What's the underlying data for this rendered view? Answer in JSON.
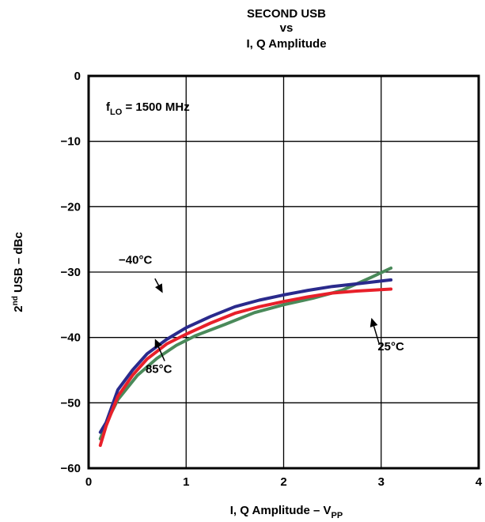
{
  "chart_data": {
    "type": "line",
    "title_lines": [
      "SECOND USB",
      "vs",
      "I, Q Amplitude"
    ],
    "xlabel": {
      "main": "I, Q Amplitude – V",
      "sub": "PP"
    },
    "ylabel": {
      "pre": "2",
      "sup": "nd",
      "post": " USB – dBc"
    },
    "xlim": [
      0,
      4
    ],
    "ylim": [
      -60,
      0
    ],
    "xticks": [
      0,
      1,
      2,
      3,
      4
    ],
    "yticks": [
      0,
      -10,
      -20,
      -30,
      -40,
      -50,
      -60
    ],
    "xtick_labels": [
      "0",
      "1",
      "2",
      "3",
      "4"
    ],
    "ytick_labels": [
      "0",
      "−10",
      "−20",
      "−30",
      "−40",
      "−50",
      "−60"
    ],
    "grid": true,
    "annotation": {
      "main": "f",
      "sub": "LO",
      "rest": " = 1500 MHz"
    },
    "series": [
      {
        "name": "−40°C",
        "color": "#2a2a8c",
        "x": [
          0.12,
          0.18,
          0.3,
          0.45,
          0.6,
          0.8,
          1.0,
          1.25,
          1.5,
          1.75,
          2.0,
          2.25,
          2.5,
          2.75,
          3.1
        ],
        "y": [
          -54.5,
          -53.0,
          -48.0,
          -45.0,
          -42.5,
          -40.3,
          -38.5,
          -36.8,
          -35.3,
          -34.3,
          -33.5,
          -32.8,
          -32.2,
          -31.8,
          -31.2
        ]
      },
      {
        "name": "25°C",
        "color": "#e8202a",
        "x": [
          0.12,
          0.18,
          0.3,
          0.45,
          0.6,
          0.8,
          1.0,
          1.25,
          1.5,
          1.75,
          2.0,
          2.25,
          2.5,
          2.75,
          3.1
        ],
        "y": [
          -56.5,
          -53.5,
          -49.0,
          -45.8,
          -43.3,
          -41.0,
          -39.5,
          -37.8,
          -36.3,
          -35.3,
          -34.5,
          -33.8,
          -33.2,
          -32.9,
          -32.6
        ]
      },
      {
        "name": "85°C",
        "color": "#4a8a5a",
        "x": [
          0.12,
          0.2,
          0.3,
          0.5,
          0.7,
          0.9,
          1.1,
          1.4,
          1.7,
          2.0,
          2.3,
          2.6,
          2.9,
          3.1
        ],
        "y": [
          -55.5,
          -52.5,
          -49.5,
          -45.8,
          -43.2,
          -41.2,
          -39.7,
          -38.0,
          -36.2,
          -35.0,
          -34.0,
          -32.8,
          -30.8,
          -29.4
        ]
      }
    ],
    "labels": [
      {
        "series": 0,
        "text": "−40°C",
        "at": [
          0.2,
          -28.7
        ],
        "anchor": "middle",
        "arrow_from": [
          0.68,
          -30.9
        ],
        "arrow_to": [
          0.77,
          -32.8
        ]
      },
      {
        "series": 2,
        "text": "85°C",
        "at": [
          0.66,
          -43.0
        ],
        "anchor": "middle",
        "arrow_from": [
          0.45,
          -40.7
        ],
        "arrow_to": [
          0.5,
          -38.9
        ]
      },
      {
        "series": 1,
        "text": "25°C",
        "at": [
          1.34,
          -37.9
        ],
        "anchor": "middle",
        "arrow_from": [
          0.34,
          -36.2
        ],
        "arrow_to": [
          0.28,
          -33.3
        ]
      }
    ]
  }
}
